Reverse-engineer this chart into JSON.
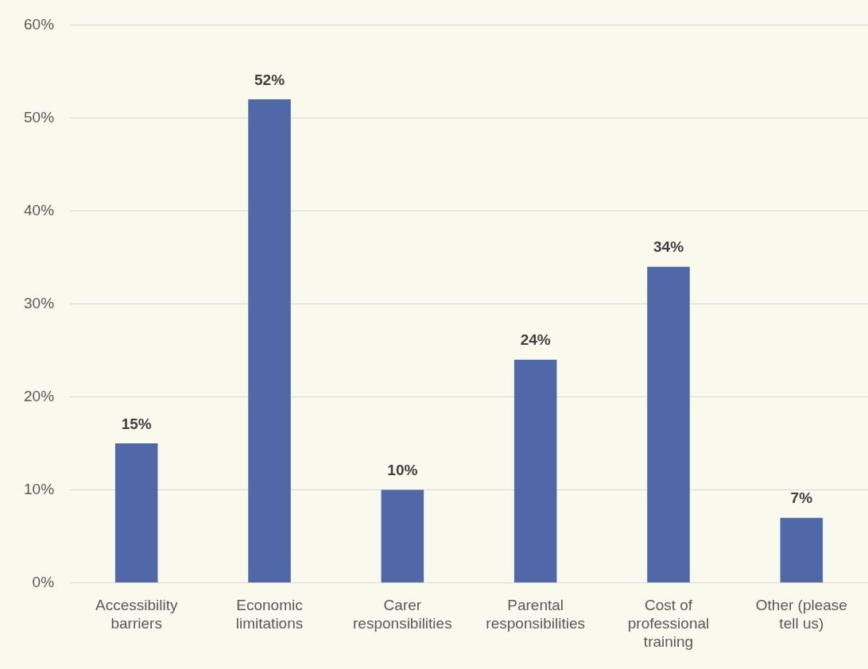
{
  "chart_data": {
    "type": "bar",
    "categories": [
      "Accessibility barriers",
      "Economic limitations",
      "Carer responsibilities",
      "Parental responsibilities",
      "Cost of professional training",
      "Other (please tell us)"
    ],
    "values": [
      15,
      52,
      10,
      24,
      34,
      7
    ],
    "color": "#5068a8",
    "ylim": [
      0,
      60
    ],
    "yticks": [
      {
        "value": 0,
        "label": "0%"
      },
      {
        "value": 10,
        "label": "10%"
      },
      {
        "value": 20,
        "label": "20%"
      },
      {
        "value": 30,
        "label": "30%"
      },
      {
        "value": 40,
        "label": "40%"
      },
      {
        "value": 50,
        "label": "50%"
      },
      {
        "value": 60,
        "label": "60%"
      }
    ],
    "value_labels": [
      "15%",
      "52%",
      "10%",
      "24%",
      "34%",
      "7%"
    ],
    "grid": "y",
    "legend": false
  }
}
